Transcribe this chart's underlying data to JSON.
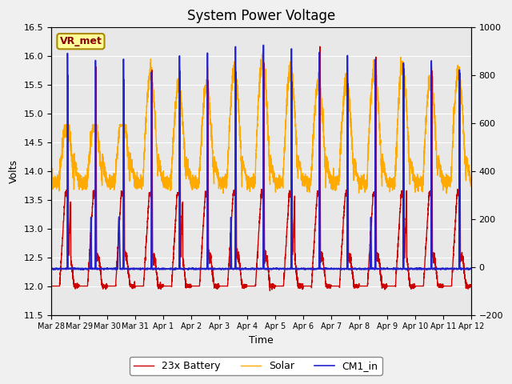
{
  "title": "System Power Voltage",
  "xlabel": "Time",
  "ylabel": "Volts",
  "ylim_left": [
    11.5,
    16.5
  ],
  "ylim_right": [
    -200,
    1000
  ],
  "yticks_left": [
    11.5,
    12.0,
    12.5,
    13.0,
    13.5,
    14.0,
    14.5,
    15.0,
    15.5,
    16.0,
    16.5
  ],
  "yticks_right": [
    -200,
    0,
    200,
    400,
    600,
    800,
    1000
  ],
  "xlim": [
    0,
    15
  ],
  "xtick_positions": [
    0,
    1,
    2,
    3,
    4,
    5,
    6,
    7,
    8,
    9,
    10,
    11,
    12,
    13,
    14,
    15
  ],
  "xtick_labels": [
    "Mar 28",
    "Mar 29",
    "Mar 30",
    "Mar 31",
    "Apr 1",
    "Apr 2",
    "Apr 3",
    "Apr 4",
    "Apr 5",
    "Apr 6",
    "Apr 7",
    "Apr 8",
    "Apr 9",
    "Apr 10",
    "Apr 11",
    "Apr 12"
  ],
  "legend_labels": [
    "23x Battery",
    "Solar",
    "CM1_in"
  ],
  "legend_colors": [
    "#cc0000",
    "#ffaa00",
    "#2222cc"
  ],
  "annotation_text": "VR_met",
  "annotation_facecolor": "#ffff99",
  "annotation_edgecolor": "#aa8800",
  "annotation_textcolor": "#8b0000",
  "plot_bg": "#e8e8e8",
  "fig_bg": "#f0f0f0",
  "grid_color": "#ffffff",
  "title_fontsize": 12,
  "axis_fontsize": 9,
  "tick_fontsize": 8,
  "legend_fontsize": 9,
  "linewidth_battery": 1.0,
  "linewidth_solar": 1.0,
  "linewidth_cm1": 1.2
}
